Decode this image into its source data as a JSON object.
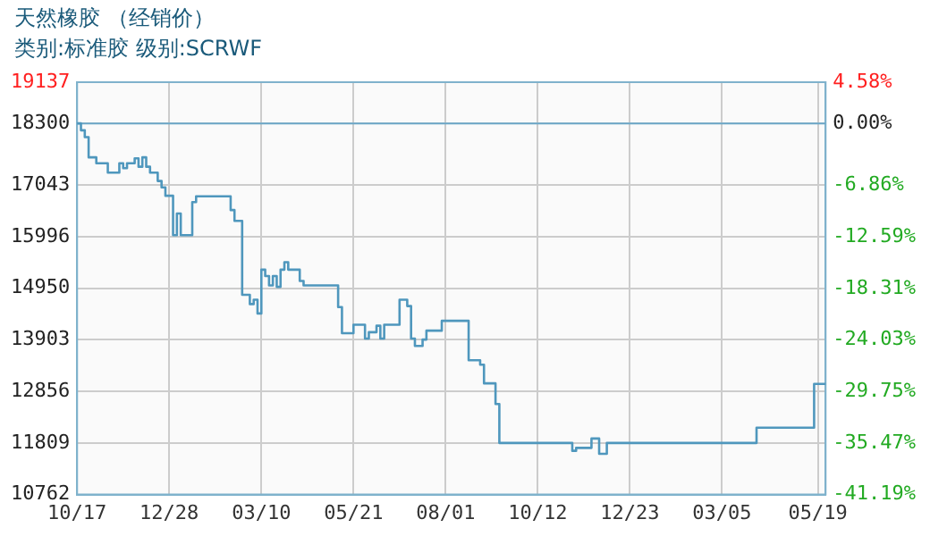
{
  "chart_data": {
    "type": "step",
    "title": "天然橡胶 （经销价）",
    "subtitle": "类别:标准胶 级别:SCRWF",
    "categories": [
      "10/17",
      null,
      null,
      null,
      null,
      null,
      null,
      null,
      null,
      null,
      null,
      null,
      null,
      null,
      null,
      null,
      null,
      null,
      null,
      null,
      null,
      null,
      null,
      null,
      "12/28",
      null,
      null,
      null,
      null,
      null,
      null,
      null,
      null,
      null,
      null,
      null,
      null,
      null,
      null,
      null,
      null,
      null,
      null,
      null,
      null,
      null,
      null,
      null,
      "03/10",
      null,
      null,
      null,
      null,
      null,
      null,
      null,
      null,
      null,
      null,
      null,
      null,
      null,
      null,
      null,
      null,
      null,
      null,
      null,
      null,
      null,
      null,
      null,
      "05/21",
      null,
      null,
      null,
      null,
      null,
      null,
      null,
      null,
      null,
      null,
      null,
      null,
      null,
      null,
      null,
      null,
      null,
      null,
      null,
      null,
      null,
      null,
      null,
      "08/01",
      null,
      null,
      null,
      null,
      null,
      null,
      null,
      null,
      null,
      null,
      null,
      null,
      null,
      null,
      null,
      null,
      null,
      null,
      null,
      null,
      null,
      null,
      null,
      "10/12",
      null,
      null,
      null,
      null,
      null,
      null,
      null,
      null,
      null,
      null,
      null,
      null,
      null,
      null,
      null,
      null,
      null,
      null,
      null,
      null,
      null,
      null,
      null,
      "12/23",
      null,
      null,
      null,
      null,
      null,
      null,
      null,
      null,
      null,
      null,
      null,
      null,
      null,
      null,
      null,
      null,
      null,
      null,
      null,
      null,
      null,
      null,
      null,
      "03/05",
      null,
      null,
      null,
      null,
      null,
      null,
      null,
      null,
      null,
      null,
      null,
      null,
      null,
      null,
      null,
      null,
      null,
      null,
      null,
      null,
      null,
      null,
      null,
      null,
      "05/19",
      null,
      null
    ],
    "series": [
      {
        "color": "#4f97bd",
        "values": [
          18300,
          18300,
          18160,
          18020,
          17610,
          17610,
          17490,
          17490,
          17490,
          17300,
          17300,
          17300,
          17490,
          17390,
          17490,
          17490,
          17590,
          17420,
          17610,
          17420,
          17300,
          17300,
          17130,
          17000,
          16830,
          16830,
          16030,
          16470,
          16030,
          16030,
          16030,
          16700,
          16820,
          16820,
          16820,
          16820,
          16820,
          16820,
          16820,
          16820,
          16820,
          16540,
          16320,
          16320,
          14820,
          14820,
          14630,
          14720,
          14440,
          15330,
          15200,
          15010,
          15200,
          14980,
          15330,
          15480,
          15330,
          15330,
          15330,
          15100,
          15010,
          15010,
          15010,
          15010,
          15010,
          15010,
          15010,
          15010,
          15010,
          14570,
          14040,
          14040,
          14040,
          14210,
          14210,
          14210,
          13930,
          14060,
          14060,
          14190,
          13930,
          14210,
          14210,
          14210,
          14210,
          14720,
          14720,
          14590,
          13930,
          13780,
          13780,
          13910,
          14090,
          14090,
          14090,
          14090,
          14290,
          14290,
          14290,
          14290,
          14290,
          14290,
          14290,
          13490,
          13490,
          13490,
          13400,
          13020,
          13020,
          13020,
          12600,
          11810,
          11810,
          11810,
          11810,
          11810,
          11810,
          11810,
          11810,
          11810,
          11810,
          11810,
          11810,
          11810,
          11810,
          11810,
          11810,
          11810,
          11810,
          11810,
          11650,
          11710,
          11710,
          11710,
          11710,
          11900,
          11900,
          11590,
          11590,
          11810,
          11810,
          11810,
          11810,
          11810,
          11810,
          11810,
          11810,
          11810,
          11810,
          11810,
          11810,
          11810,
          11810,
          11810,
          11810,
          11810,
          11810,
          11810,
          11810,
          11810,
          11810,
          11810,
          11810,
          11810,
          11810,
          11810,
          11810,
          11810,
          11810,
          11810,
          11810,
          11810,
          11810,
          11810,
          11810,
          11810,
          11810,
          11810,
          12120,
          12120,
          12120,
          12120,
          12120,
          12120,
          12120,
          12120,
          12120,
          12120,
          12120,
          12120,
          12120,
          12120,
          12120,
          13010,
          13010,
          13010
        ]
      }
    ],
    "ylim": [
      10762,
      19137
    ],
    "yticks": [
      10762,
      11809,
      12856,
      13903,
      14950,
      15996,
      17043,
      18300,
      19137
    ],
    "y2lim": [
      -41.19,
      4.58
    ],
    "y2ticks": [
      {
        "value": -41.19,
        "label": "-41.19%"
      },
      {
        "value": -35.47,
        "label": "-35.47%"
      },
      {
        "value": -29.75,
        "label": "-29.75%"
      },
      {
        "value": -24.03,
        "label": "-24.03%"
      },
      {
        "value": -18.31,
        "label": "-18.31%"
      },
      {
        "value": -12.59,
        "label": "-12.59%"
      },
      {
        "value": -6.86,
        "label": "-6.86%"
      },
      {
        "value": 0,
        "label": "0.00%"
      },
      {
        "value": 4.58,
        "label": "4.58%"
      }
    ],
    "ref_lines": [
      {
        "axis": "y",
        "value": 18300,
        "color": "#6ba7c8"
      }
    ],
    "grid": true,
    "legend": false,
    "marker": "none",
    "line_style": "solid"
  }
}
